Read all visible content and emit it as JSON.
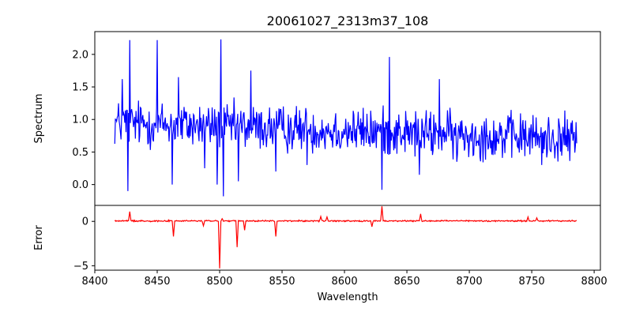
{
  "chart_data": [
    {
      "type": "line",
      "title": "20061027_2313m37_108",
      "xlabel": "",
      "ylabel": "Spectrum",
      "xlim": [
        8400,
        8805
      ],
      "ylim": [
        -0.32,
        2.35
      ],
      "xticks": [],
      "yticks": [
        0.0,
        0.5,
        1.0,
        1.5,
        2.0
      ],
      "ytick_labels": [
        "0.0",
        "0.5",
        "1.0",
        "1.5",
        "2.0"
      ],
      "grid": false,
      "series": [
        {
          "color": "#0000ff",
          "x_start": 8416,
          "x_step": 0.5,
          "y_base": 0.95,
          "y_noise": 0.22,
          "features": [
            {
              "x": 8422,
              "y": 1.62
            },
            {
              "x": 8426.5,
              "y": -0.1
            },
            {
              "x": 8428,
              "y": 2.22
            },
            {
              "x": 8450,
              "y": 2.22
            },
            {
              "x": 8462,
              "y": 0.0
            },
            {
              "x": 8467,
              "y": 1.65
            },
            {
              "x": 8488,
              "y": 0.25
            },
            {
              "x": 8498,
              "y": 0.0
            },
            {
              "x": 8501,
              "y": 2.23
            },
            {
              "x": 8503,
              "y": -0.18
            },
            {
              "x": 8515,
              "y": 0.05
            },
            {
              "x": 8525,
              "y": 1.75
            },
            {
              "x": 8545,
              "y": 0.2
            },
            {
              "x": 8570,
              "y": 0.3
            },
            {
              "x": 8630,
              "y": -0.08
            },
            {
              "x": 8636,
              "y": 1.96
            },
            {
              "x": 8660,
              "y": 0.15
            },
            {
              "x": 8676,
              "y": 1.62
            },
            {
              "x": 8690,
              "y": 0.35
            },
            {
              "x": 8758,
              "y": 0.3
            }
          ]
        }
      ]
    },
    {
      "type": "line",
      "title": "",
      "xlabel": "Wavelength",
      "ylabel": "Error",
      "xlim": [
        8400,
        8805
      ],
      "ylim": [
        -5.5,
        1.8
      ],
      "xticks": [
        8400,
        8450,
        8500,
        8550,
        8600,
        8650,
        8700,
        8750,
        8800
      ],
      "xtick_labels": [
        "8400",
        "8450",
        "8500",
        "8550",
        "8600",
        "8650",
        "8700",
        "8750",
        "8800"
      ],
      "yticks": [
        0,
        -5
      ],
      "ytick_labels": [
        "0",
        "−5"
      ],
      "grid": false,
      "series": [
        {
          "color": "#ff0000",
          "x_start": 8416,
          "x_step": 0.5,
          "y_base": 0.05,
          "y_noise": 0.05,
          "features": [
            {
              "x": 8428,
              "y": 1.1
            },
            {
              "x": 8463,
              "y": -1.7
            },
            {
              "x": 8487,
              "y": -0.5
            },
            {
              "x": 8500,
              "y": -5.3
            },
            {
              "x": 8502,
              "y": 0.3
            },
            {
              "x": 8514,
              "y": -2.9
            },
            {
              "x": 8520,
              "y": -1.0
            },
            {
              "x": 8545,
              "y": -1.7
            },
            {
              "x": 8581,
              "y": 0.55
            },
            {
              "x": 8586,
              "y": 0.5
            },
            {
              "x": 8622,
              "y": -0.6
            },
            {
              "x": 8630,
              "y": 1.7
            },
            {
              "x": 8661,
              "y": 0.85
            },
            {
              "x": 8747,
              "y": 0.5
            },
            {
              "x": 8754,
              "y": 0.4
            }
          ]
        }
      ]
    }
  ]
}
